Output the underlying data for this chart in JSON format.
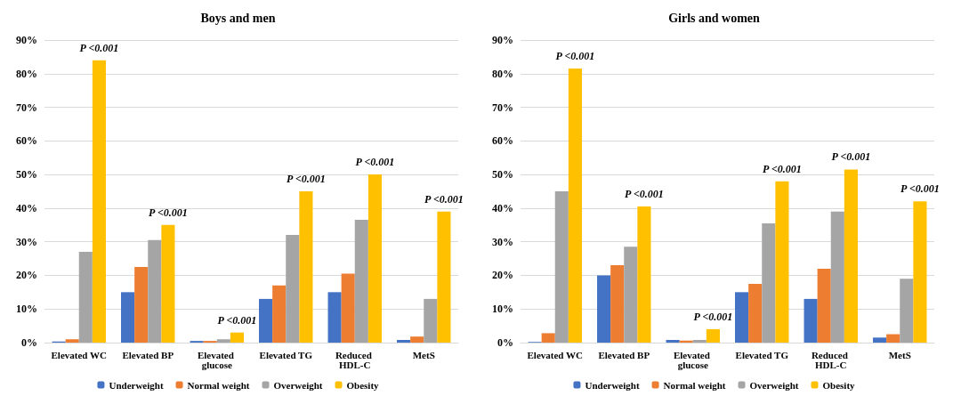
{
  "chart_data": [
    {
      "type": "bar",
      "title": "Boys and men",
      "categories": [
        "Elevated WC",
        "Elevated BP",
        "Elevated glucose",
        "Elevated TG",
        "Reduced HDL-C",
        "MetS"
      ],
      "series": [
        {
          "name": "Underweight",
          "color": "#4472c4",
          "values": [
            0.3,
            15,
            0.5,
            13,
            15,
            0.8
          ]
        },
        {
          "name": "Normal weight",
          "color": "#ed7d31",
          "values": [
            1,
            22.5,
            0.5,
            17,
            20.5,
            1.8
          ]
        },
        {
          "name": "Overweight",
          "color": "#a5a5a5",
          "values": [
            27,
            30.5,
            1,
            32,
            36.5,
            13
          ]
        },
        {
          "name": "Obesity",
          "color": "#ffc000",
          "values": [
            84,
            35,
            3,
            45,
            50,
            39
          ]
        }
      ],
      "ylim": [
        0,
        90
      ],
      "yticks": [
        {
          "value": 0,
          "label": "0%"
        },
        {
          "value": 10,
          "label": "10%"
        },
        {
          "value": 20,
          "label": "20%"
        },
        {
          "value": 30,
          "label": "30%"
        },
        {
          "value": 40,
          "label": "40%"
        },
        {
          "value": 50,
          "label": "50%"
        },
        {
          "value": 60,
          "label": "60%"
        },
        {
          "value": 70,
          "label": "70%"
        },
        {
          "value": 80,
          "label": "80%"
        },
        {
          "value": 90,
          "label": "90%"
        }
      ],
      "grid": "y",
      "legend": "bottom",
      "annotations": [
        "P <0.001",
        "P <0.001",
        "P <0.001",
        "P <0.001",
        "P <0.001",
        "P <0.001"
      ]
    },
    {
      "type": "bar",
      "title": "Girls and women",
      "categories": [
        "Elevated WC",
        "Elevated BP",
        "Elevated glucose",
        "Elevated TG",
        "Reduced HDL-C",
        "MetS"
      ],
      "series": [
        {
          "name": "Underweight",
          "color": "#4472c4",
          "values": [
            0.2,
            20,
            0.8,
            15,
            13,
            1.5
          ]
        },
        {
          "name": "Normal weight",
          "color": "#ed7d31",
          "values": [
            2.8,
            23,
            0.6,
            17.5,
            22,
            2.5
          ]
        },
        {
          "name": "Overweight",
          "color": "#a5a5a5",
          "values": [
            45,
            28.5,
            0.8,
            35.5,
            39,
            19
          ]
        },
        {
          "name": "Obesity",
          "color": "#ffc000",
          "values": [
            81.5,
            40.5,
            4,
            48,
            51.5,
            42
          ]
        }
      ],
      "ylim": [
        0,
        90
      ],
      "yticks": [
        {
          "value": 0,
          "label": "0%"
        },
        {
          "value": 10,
          "label": "10%"
        },
        {
          "value": 20,
          "label": "20%"
        },
        {
          "value": 30,
          "label": "30%"
        },
        {
          "value": 40,
          "label": "40%"
        },
        {
          "value": 50,
          "label": "50%"
        },
        {
          "value": 60,
          "label": "60%"
        },
        {
          "value": 70,
          "label": "70%"
        },
        {
          "value": 80,
          "label": "80%"
        },
        {
          "value": 90,
          "label": "90%"
        }
      ],
      "grid": "y",
      "legend": "bottom",
      "annotations": [
        "P <0.001",
        "P <0.001",
        "P <0.001",
        "P <0.001",
        "P <0.001",
        "P <0.001"
      ]
    }
  ]
}
